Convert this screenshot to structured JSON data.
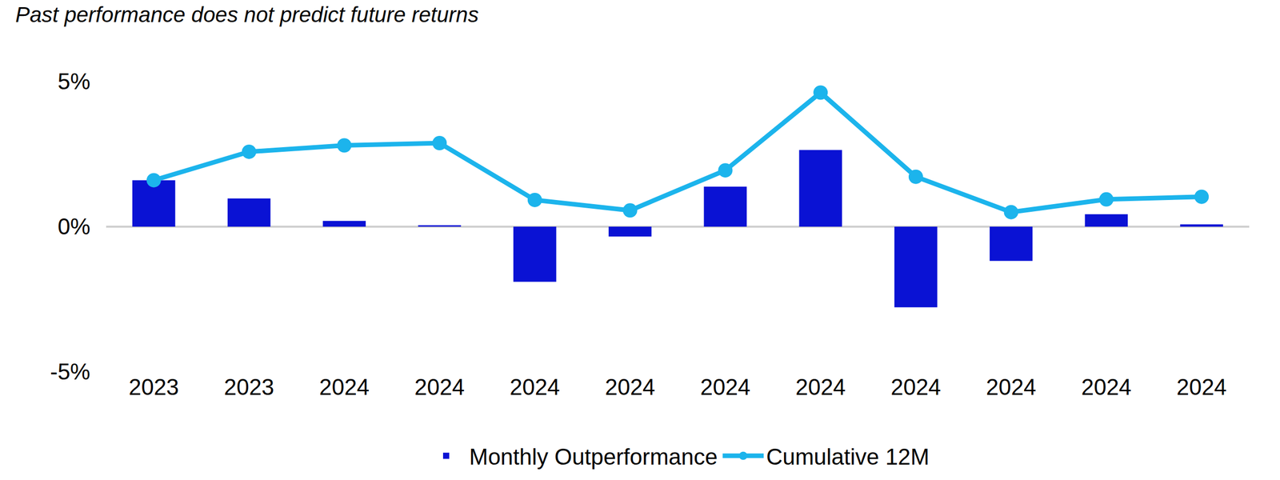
{
  "chart_data": {
    "type": "bar",
    "title": "Past performance does not predict future returns",
    "categories": [
      "2023",
      "2023",
      "2024",
      "2024",
      "2024",
      "2024",
      "2024",
      "2024",
      "2024",
      "2024",
      "2024",
      "2024"
    ],
    "series": [
      {
        "name": "Monthly Outperformance",
        "type": "bar",
        "color": "#0a12d4",
        "values": [
          1.6,
          0.97,
          0.2,
          0.05,
          -1.9,
          -0.34,
          1.38,
          2.64,
          -2.78,
          -1.18,
          0.43,
          0.08
        ]
      },
      {
        "name": "Cumulative 12M",
        "type": "line",
        "color": "#1cb4ec",
        "marker": "circle",
        "line_style": "solid",
        "values": [
          1.6,
          2.58,
          2.8,
          2.88,
          0.92,
          0.56,
          1.94,
          4.62,
          1.72,
          0.5,
          0.94,
          1.03
        ]
      }
    ],
    "ylim": [
      -5,
      5
    ],
    "yticks": [
      {
        "value": -5,
        "label": "-5%"
      },
      {
        "value": 0,
        "label": "0%"
      },
      {
        "value": 5,
        "label": "5%"
      }
    ],
    "grid": true,
    "legend": "bottom"
  }
}
